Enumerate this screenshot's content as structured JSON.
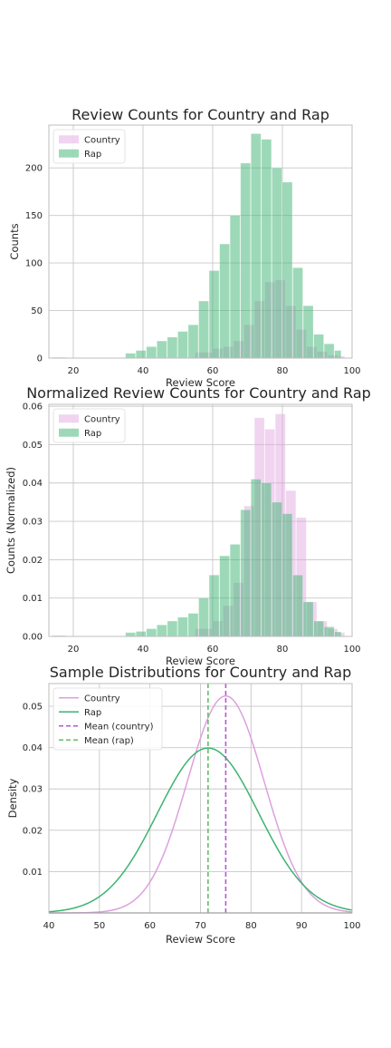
{
  "colors": {
    "country": "#dda0dd",
    "rap": "#3cb371",
    "country_mean": "#ba55d3",
    "rap_mean": "#66bb6a",
    "grid": "#c8c8c8",
    "frame": "#bdbdbd"
  },
  "chart_data": [
    {
      "type": "bar",
      "subtype": "histogram",
      "title": "Review Counts for Country and Rap",
      "xlabel": "Review Score",
      "ylabel": "Counts",
      "xlim": [
        13,
        100
      ],
      "ylim": [
        0,
        245
      ],
      "xticks": [
        20,
        40,
        60,
        80,
        100
      ],
      "yticks": [
        0,
        50,
        100,
        150,
        200
      ],
      "grid": true,
      "legend_position": "top-left",
      "series": [
        {
          "name": "Country",
          "color": "#dda0dd",
          "bins": [
            [
              14,
              18,
              1
            ],
            [
              55,
              60,
              6
            ],
            [
              60,
              63,
              10
            ],
            [
              63,
              66,
              12
            ],
            [
              66,
              69,
              18
            ],
            [
              69,
              72,
              35
            ],
            [
              72,
              75,
              60
            ],
            [
              75,
              78,
              80
            ],
            [
              78,
              81,
              82
            ],
            [
              81,
              84,
              55
            ],
            [
              84,
              87,
              30
            ],
            [
              87,
              90,
              12
            ],
            [
              90,
              93,
              7
            ],
            [
              93,
              96,
              3
            ],
            [
              96,
              98,
              2
            ]
          ]
        },
        {
          "name": "Rap",
          "color": "#3cb371",
          "bins": [
            [
              35,
              38,
              5
            ],
            [
              38,
              41,
              8
            ],
            [
              41,
              44,
              12
            ],
            [
              44,
              47,
              18
            ],
            [
              47,
              50,
              22
            ],
            [
              50,
              53,
              28
            ],
            [
              53,
              56,
              35
            ],
            [
              56,
              59,
              60
            ],
            [
              59,
              62,
              92
            ],
            [
              62,
              65,
              120
            ],
            [
              65,
              68,
              150
            ],
            [
              68,
              71,
              205
            ],
            [
              71,
              74,
              236
            ],
            [
              74,
              77,
              230
            ],
            [
              77,
              80,
              200
            ],
            [
              80,
              83,
              185
            ],
            [
              83,
              86,
              95
            ],
            [
              86,
              89,
              55
            ],
            [
              89,
              92,
              25
            ],
            [
              92,
              95,
              15
            ],
            [
              95,
              97,
              8
            ]
          ]
        }
      ]
    },
    {
      "type": "bar",
      "subtype": "histogram",
      "title": "Normalized Review Counts for Country and Rap",
      "xlabel": "Review Score",
      "ylabel": "Counts (Normalized)",
      "xlim": [
        13,
        100
      ],
      "ylim": [
        0,
        0.0605
      ],
      "xticks": [
        20,
        40,
        60,
        80,
        100
      ],
      "yticks": [
        0.0,
        0.01,
        0.02,
        0.03,
        0.04,
        0.05,
        0.06
      ],
      "grid": true,
      "legend_position": "top-left",
      "series": [
        {
          "name": "Country",
          "color": "#dda0dd",
          "bins": [
            [
              14,
              18,
              0.0003
            ],
            [
              55,
              60,
              0.002
            ],
            [
              60,
              63,
              0.004
            ],
            [
              63,
              66,
              0.008
            ],
            [
              66,
              69,
              0.014
            ],
            [
              69,
              72,
              0.034
            ],
            [
              72,
              75,
              0.057
            ],
            [
              75,
              78,
              0.054
            ],
            [
              78,
              81,
              0.058
            ],
            [
              81,
              84,
              0.038
            ],
            [
              84,
              87,
              0.031
            ],
            [
              87,
              90,
              0.009
            ],
            [
              90,
              93,
              0.004
            ],
            [
              93,
              96,
              0.002
            ],
            [
              96,
              98,
              0.001
            ]
          ]
        },
        {
          "name": "Rap",
          "color": "#3cb371",
          "bins": [
            [
              35,
              38,
              0.001
            ],
            [
              38,
              41,
              0.0013
            ],
            [
              41,
              44,
              0.002
            ],
            [
              44,
              47,
              0.003
            ],
            [
              47,
              50,
              0.004
            ],
            [
              50,
              53,
              0.005
            ],
            [
              53,
              56,
              0.006
            ],
            [
              56,
              59,
              0.01
            ],
            [
              59,
              62,
              0.016
            ],
            [
              62,
              65,
              0.021
            ],
            [
              65,
              68,
              0.024
            ],
            [
              68,
              71,
              0.033
            ],
            [
              71,
              74,
              0.041
            ],
            [
              74,
              77,
              0.04
            ],
            [
              77,
              80,
              0.035
            ],
            [
              80,
              83,
              0.032
            ],
            [
              83,
              86,
              0.016
            ],
            [
              86,
              89,
              0.009
            ],
            [
              89,
              92,
              0.004
            ],
            [
              92,
              95,
              0.0025
            ],
            [
              95,
              97,
              0.0012
            ]
          ]
        }
      ]
    },
    {
      "type": "line",
      "title": "Sample Distributions for Country and Rap",
      "xlabel": "Review Score",
      "ylabel": "Density",
      "xlim": [
        40,
        100
      ],
      "ylim": [
        0,
        0.0555
      ],
      "xticks": [
        40,
        50,
        60,
        70,
        80,
        90,
        100
      ],
      "yticks": [
        0.01,
        0.02,
        0.03,
        0.04,
        0.05
      ],
      "grid": true,
      "legend_position": "top-left",
      "series": [
        {
          "name": "Country",
          "color": "#dda0dd",
          "kind": "normal_pdf",
          "mean": 75,
          "std": 7.6
        },
        {
          "name": "Rap",
          "color": "#3cb371",
          "kind": "normal_pdf",
          "mean": 71.5,
          "std": 10.0
        }
      ],
      "vlines": [
        {
          "name": "Mean (country)",
          "x": 75,
          "color": "#ba55d3"
        },
        {
          "name": "Mean (rap)",
          "x": 71.5,
          "color": "#66bb6a"
        }
      ]
    }
  ]
}
